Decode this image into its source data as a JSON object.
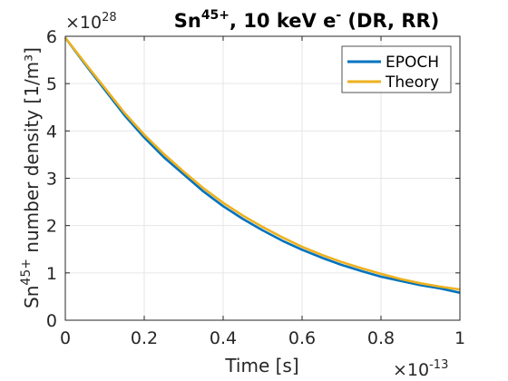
{
  "chart_data": {
    "type": "line",
    "title_main": "Sn",
    "title_sup": "45+",
    "title_rest": ", 10 keV e",
    "title_esup": "-",
    "title_tail": " (DR, RR)",
    "xlabel": "Time [s]",
    "ylabel_pre": "Sn",
    "ylabel_sup": "45+",
    "ylabel_post": " number density [1/m³]",
    "x_exponent": "×10",
    "x_exponent_power": "-13",
    "y_exponent": "×10",
    "y_exponent_power": "28",
    "xlim": [
      0,
      1
    ],
    "ylim": [
      0,
      6
    ],
    "x_ticks": [
      "0",
      "0.2",
      "0.4",
      "0.6",
      "0.8",
      "1"
    ],
    "y_ticks": [
      "0",
      "1",
      "2",
      "3",
      "4",
      "5",
      "6"
    ],
    "grid": true,
    "legend_position": "top-right",
    "series": [
      {
        "name": "EPOCH",
        "color": "#0072BD",
        "x": [
          0,
          0.05,
          0.1,
          0.15,
          0.2,
          0.25,
          0.3,
          0.35,
          0.4,
          0.45,
          0.5,
          0.55,
          0.6,
          0.65,
          0.7,
          0.75,
          0.8,
          0.85,
          0.9,
          0.95,
          1.0
        ],
        "y": [
          5.97,
          5.41,
          4.87,
          4.33,
          3.86,
          3.44,
          3.08,
          2.72,
          2.41,
          2.14,
          1.9,
          1.68,
          1.49,
          1.32,
          1.17,
          1.04,
          0.92,
          0.83,
          0.74,
          0.67,
          0.58
        ]
      },
      {
        "name": "Theory",
        "color": "#EDB120",
        "x": [
          0,
          0.05,
          0.1,
          0.15,
          0.2,
          0.25,
          0.3,
          0.35,
          0.4,
          0.45,
          0.5,
          0.55,
          0.6,
          0.65,
          0.7,
          0.75,
          0.8,
          0.85,
          0.9,
          0.95,
          1.0
        ],
        "y": [
          5.97,
          5.43,
          4.91,
          4.38,
          3.92,
          3.51,
          3.14,
          2.79,
          2.48,
          2.21,
          1.97,
          1.75,
          1.55,
          1.38,
          1.23,
          1.1,
          0.98,
          0.87,
          0.78,
          0.71,
          0.65
        ]
      }
    ]
  }
}
